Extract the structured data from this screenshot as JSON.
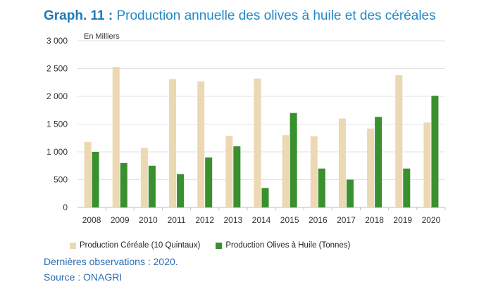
{
  "title": {
    "lead": "Graph. 11 :",
    "text": "Production annuelle des olives à huile et des céréales"
  },
  "unit_label": "En Milliers",
  "notes": {
    "last_obs": "Dernières observations : 2020.",
    "source": "Source : ONAGRI"
  },
  "chart_data": {
    "type": "bar",
    "categories": [
      "2008",
      "2009",
      "2010",
      "2011",
      "2012",
      "2013",
      "2014",
      "2015",
      "2016",
      "2017",
      "2018",
      "2019",
      "2020"
    ],
    "series": [
      {
        "name": "Production Céréale (10 Quintaux)",
        "color": "#ecd8b3",
        "values": [
          1180,
          2530,
          1070,
          2310,
          2270,
          1290,
          2320,
          1300,
          1280,
          1600,
          1420,
          2380,
          1530
        ]
      },
      {
        "name": "Production  Olives à Huile (Tonnes)",
        "color": "#3a8f2e",
        "values": [
          1000,
          800,
          750,
          600,
          900,
          1100,
          350,
          1700,
          700,
          500,
          1630,
          700,
          2010
        ]
      }
    ],
    "y_ticks": [
      "0",
      "500",
      "1 000",
      "1 500",
      "2 000",
      "2 500",
      "3 000"
    ],
    "ylim": [
      0,
      3000
    ],
    "grid": true,
    "legend_position": "bottom"
  }
}
